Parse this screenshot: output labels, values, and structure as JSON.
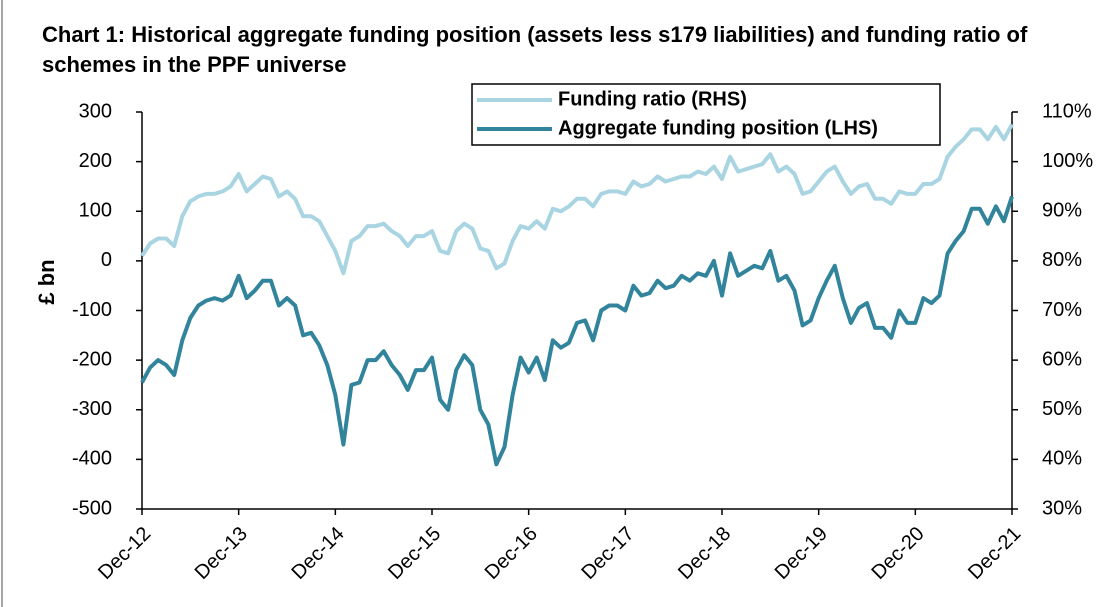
{
  "chart_data": {
    "type": "line",
    "title": "Chart 1: Historical aggregate funding position (assets less s179 liabilities) and funding ratio of schemes in the PPF universe",
    "ylabel": "£ bn",
    "categories": [
      "Dec-12",
      null,
      null,
      null,
      null,
      null,
      null,
      null,
      null,
      null,
      null,
      null,
      "Dec-13",
      null,
      null,
      null,
      null,
      null,
      null,
      null,
      null,
      null,
      null,
      null,
      "Dec-14",
      null,
      null,
      null,
      null,
      null,
      null,
      null,
      null,
      null,
      null,
      null,
      "Dec-15",
      null,
      null,
      null,
      null,
      null,
      null,
      null,
      null,
      null,
      null,
      null,
      "Dec-16",
      null,
      null,
      null,
      null,
      null,
      null,
      null,
      null,
      null,
      null,
      null,
      "Dec-17",
      null,
      null,
      null,
      null,
      null,
      null,
      null,
      null,
      null,
      null,
      null,
      "Dec-18",
      null,
      null,
      null,
      null,
      null,
      null,
      null,
      null,
      null,
      null,
      null,
      "Dec-19",
      null,
      null,
      null,
      null,
      null,
      null,
      null,
      null,
      null,
      null,
      null,
      "Dec-20",
      null,
      null,
      null,
      null,
      null,
      null,
      null,
      null,
      null,
      null,
      null,
      "Dec-21"
    ],
    "series": [
      {
        "name": "Funding ratio (RHS)",
        "color": "#a9d4e1",
        "axis": "y2",
        "values": [
          81,
          83.5,
          84.5,
          84.5,
          83,
          89,
          92,
          93,
          93.5,
          93.5,
          94,
          95,
          97.5,
          94,
          95.5,
          97,
          96.5,
          93,
          94,
          92.5,
          89,
          89,
          88,
          85,
          82,
          77.5,
          84,
          85,
          87,
          87,
          87.5,
          86,
          85,
          83,
          85,
          85,
          86,
          82,
          81.5,
          86,
          87.5,
          86.5,
          82.5,
          82,
          78.5,
          79.5,
          84,
          87,
          86.5,
          88,
          86.5,
          90.5,
          90,
          91,
          92.5,
          92.5,
          91,
          93.5,
          94,
          94,
          93.5,
          96,
          95,
          95.5,
          97,
          96,
          96.5,
          97,
          97,
          98,
          97.5,
          99,
          96.5,
          101,
          98,
          98.5,
          99,
          99.5,
          101.5,
          98,
          99,
          97.5,
          93.5,
          94,
          96,
          98,
          99,
          96,
          93.5,
          95,
          95.5,
          92.5,
          92.5,
          91.5,
          94,
          93.5,
          93.5,
          95.5,
          95.5,
          96.5,
          101,
          103,
          104.5,
          106.5,
          106.5,
          104.5,
          107,
          104.5,
          107.5
        ]
      },
      {
        "name": "Aggregate funding position (LHS)",
        "color": "#31849b",
        "values": [
          -245,
          -215,
          -200,
          -210,
          -230,
          -160,
          -115,
          -90,
          -80,
          -75,
          -80,
          -70,
          -30,
          -75,
          -60,
          -40,
          -40,
          -90,
          -75,
          -90,
          -150,
          -145,
          -170,
          -210,
          -270,
          -370,
          -250,
          -245,
          -200,
          -200,
          -182,
          -210,
          -230,
          -260,
          -220,
          -220,
          -195,
          -280,
          -300,
          -220,
          -190,
          -210,
          -300,
          -330,
          -410,
          -375,
          -270,
          -195,
          -225,
          -195,
          -240,
          -160,
          -175,
          -165,
          -125,
          -120,
          -160,
          -100,
          -90,
          -90,
          -100,
          -50,
          -70,
          -65,
          -40,
          -55,
          -50,
          -30,
          -40,
          -25,
          -30,
          0,
          -70,
          15,
          -30,
          -20,
          -10,
          -15,
          20,
          -40,
          -30,
          -60,
          -130,
          -120,
          -75,
          -40,
          -10,
          -75,
          -125,
          -95,
          -85,
          -135,
          -135,
          -155,
          -100,
          -125,
          -125,
          -75,
          -85,
          -70,
          15,
          40,
          60,
          105,
          105,
          75,
          110,
          80,
          130
        ]
      }
    ],
    "ylim": [
      -500,
      300
    ],
    "yticks": [
      -500,
      -400,
      -300,
      -200,
      -100,
      0,
      100,
      200,
      300
    ],
    "y2lim": [
      30,
      110
    ],
    "y2ticks": [
      {
        "value": 30,
        "label": "30%"
      },
      {
        "value": 40,
        "label": "40%"
      },
      {
        "value": 50,
        "label": "50%"
      },
      {
        "value": 60,
        "label": "60%"
      },
      {
        "value": 70,
        "label": "70%"
      },
      {
        "value": 80,
        "label": "80%"
      },
      {
        "value": 90,
        "label": "90%"
      },
      {
        "value": 100,
        "label": "100%"
      },
      {
        "value": 110,
        "label": "110%"
      }
    ]
  }
}
